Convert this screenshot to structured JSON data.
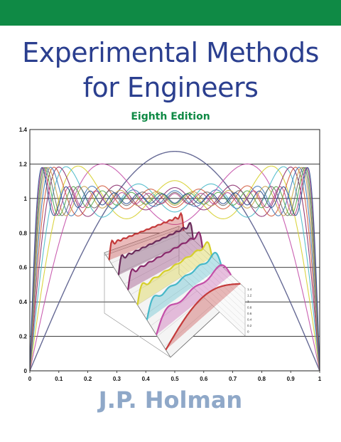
{
  "cover": {
    "title_line1": "Experimental Methods",
    "title_line2": "for Engineers",
    "edition": "Eighth Edition",
    "author": "J.P. Holman",
    "band_color": "#0f8a45",
    "title_color": "#2b3f8f",
    "author_color": "#8fa8c8"
  },
  "chart_data": [
    {
      "type": "line",
      "title": "",
      "xlabel": "",
      "ylabel": "",
      "xlim": [
        0,
        1
      ],
      "ylim": [
        0,
        1.4
      ],
      "x_ticks": [
        "0",
        "0.1",
        "0.2",
        "0.3",
        "0.4",
        "0.5",
        "0.6",
        "0.7",
        "0.8",
        "0.9",
        "1"
      ],
      "y_ticks": [
        "0",
        "0.2",
        "0.4",
        "0.6",
        "0.8",
        "1",
        "1.2",
        "1.4"
      ],
      "grid": "horizontal",
      "series_terms": [
        1,
        3,
        5,
        7,
        9,
        11,
        13,
        15,
        17,
        19,
        21,
        23
      ],
      "series_colors": [
        "#555a8a",
        "#c44fa8",
        "#d6cf2c",
        "#47b8c8",
        "#8a2a6c",
        "#d25a3c",
        "#3f7ab8",
        "#c9a54d",
        "#6e6e6e",
        "#58a94b",
        "#b8478c",
        "#2c4f8f"
      ]
    },
    {
      "type": "area",
      "title": "",
      "y_ticks": [
        "1.4",
        "1.2",
        "1",
        "0.8",
        "0.6",
        "0.4",
        "0.2",
        "0"
      ],
      "series_colors": [
        "#c43a3a",
        "#6a2b5a",
        "#8a2a6c",
        "#d6cf2c",
        "#47b8c8",
        "#c44fa8",
        "#c43a3a"
      ]
    }
  ]
}
